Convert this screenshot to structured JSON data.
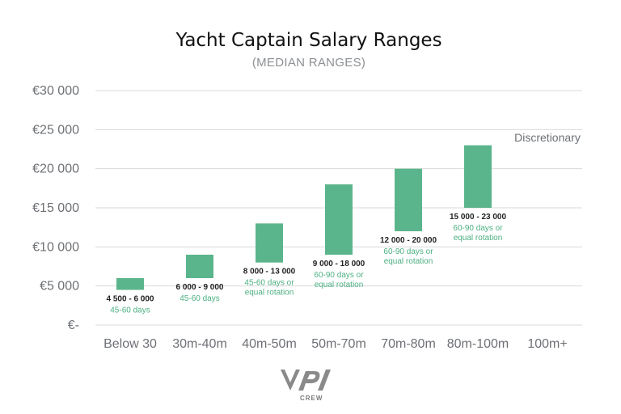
{
  "chart_data": {
    "type": "bar",
    "title": "Yacht Captain Salary Ranges",
    "subtitle": "(MEDIAN RANGES)",
    "xlabel": "",
    "ylabel": "",
    "ylim": [
      0,
      30000
    ],
    "yticks": [
      {
        "value": 0,
        "label": "€-"
      },
      {
        "value": 5000,
        "label": "€5 000"
      },
      {
        "value": 10000,
        "label": "€10 000"
      },
      {
        "value": 15000,
        "label": "€15 000"
      },
      {
        "value": 20000,
        "label": "€20 000"
      },
      {
        "value": 25000,
        "label": "€25 000"
      },
      {
        "value": 30000,
        "label": "€30 000"
      }
    ],
    "grid": true,
    "bar_color": "#5bb58c",
    "note_color": "#4caf82",
    "categories": [
      {
        "name": "Below 30",
        "low": 4500,
        "high": 6000,
        "range_label": "4 500 - 6 000",
        "note": [
          "45-60 days"
        ]
      },
      {
        "name": "30m-40m",
        "low": 6000,
        "high": 9000,
        "range_label": "6 000 - 9 000",
        "note": [
          "45-60 days"
        ]
      },
      {
        "name": "40m-50m",
        "low": 8000,
        "high": 13000,
        "range_label": "8 000 - 13 000",
        "note": [
          "45-60 days or",
          "equal rotation"
        ]
      },
      {
        "name": "50m-70m",
        "low": 9000,
        "high": 18000,
        "range_label": "9 000 - 18 000",
        "note": [
          "60-90 days or",
          "equal rotation"
        ]
      },
      {
        "name": "70m-80m",
        "low": 12000,
        "high": 20000,
        "range_label": "12 000 - 20 000",
        "note": [
          "60-90 days or",
          "equal rotation"
        ]
      },
      {
        "name": "80m-100m",
        "low": 15000,
        "high": 23000,
        "range_label": "15 000 - 23 000",
        "note": [
          "60-90 days or",
          "equal rotation"
        ]
      },
      {
        "name": "100m+",
        "low": null,
        "high": null,
        "range_label": "Discretionary",
        "note": []
      }
    ]
  },
  "logo": {
    "mark": "VPI",
    "text": "CREW"
  }
}
